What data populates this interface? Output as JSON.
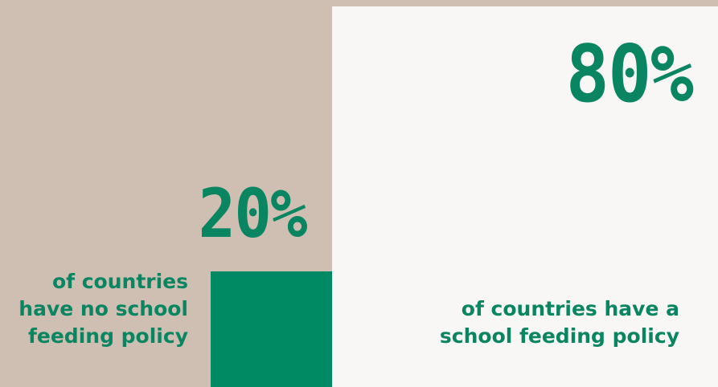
{
  "chart_data": {
    "type": "bar",
    "categories": [
      "of countries have no school feeding policy",
      "of countries have a school feeding policy"
    ],
    "values": [
      20,
      80
    ],
    "value_labels": [
      "20%",
      "80%"
    ],
    "title": "",
    "xlabel": "",
    "ylabel": "",
    "ylim": [
      0,
      100
    ],
    "grid": false,
    "legend": "none",
    "colors": {
      "background": "#cfbfb2",
      "panel": "#f8f7f5",
      "accent": "#0a8562",
      "bar": "#008a63"
    }
  },
  "labels": {
    "pct_no_policy": "20%",
    "pct_policy": "80%",
    "caption_no_policy_lines": [
      "of countries",
      "have no school",
      "feeding policy"
    ],
    "caption_policy_lines": [
      "of countries have a",
      "school feeding policy"
    ]
  }
}
